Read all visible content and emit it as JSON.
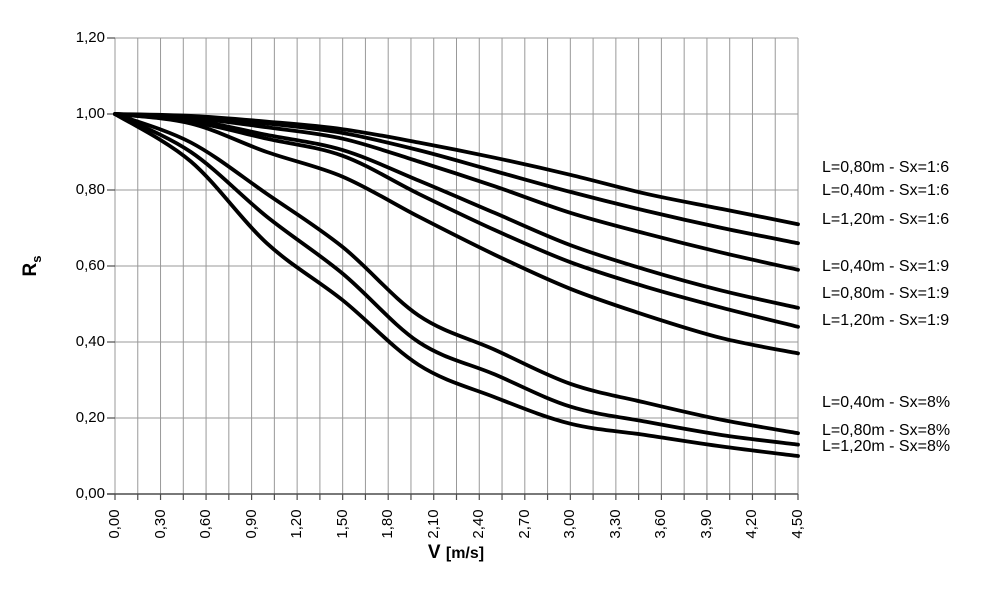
{
  "chart_data": {
    "type": "line",
    "title": "",
    "xlabel_main": "V",
    "xlabel_unit": "[m/s]",
    "ylabel_main": "R",
    "ylabel_sub": "s",
    "xlim": [
      0,
      4.5
    ],
    "ylim": [
      0,
      1.2
    ],
    "grid": true,
    "x_gridline_step": 0.15,
    "x_label_step": 0.3,
    "y_gridline_step": 0.2,
    "x_tick_labels": [
      "0,00",
      "0,30",
      "0,60",
      "0,90",
      "1,20",
      "1,50",
      "1,80",
      "2,10",
      "2,40",
      "2,70",
      "3,00",
      "3,30",
      "3,60",
      "3,90",
      "4,20",
      "4,50"
    ],
    "y_tick_labels": [
      "0,00",
      "0,20",
      "0,40",
      "0,60",
      "0,80",
      "1,00",
      "1,20"
    ],
    "x": [
      0,
      0.5,
      1.0,
      1.5,
      2.0,
      2.5,
      3.0,
      3.5,
      4.0,
      4.5
    ],
    "series": [
      {
        "name": "L=0,80m - Sx=1:6",
        "values": [
          1.0,
          0.995,
          0.98,
          0.96,
          0.925,
          0.885,
          0.84,
          0.79,
          0.75,
          0.71
        ]
      },
      {
        "name": "L=0,40m - Sx=1:6",
        "values": [
          1.0,
          0.99,
          0.975,
          0.95,
          0.905,
          0.85,
          0.795,
          0.745,
          0.7,
          0.66
        ]
      },
      {
        "name": "L=1,20m - Sx=1:6",
        "values": [
          1.0,
          0.99,
          0.965,
          0.935,
          0.875,
          0.81,
          0.74,
          0.685,
          0.635,
          0.59
        ]
      },
      {
        "name": "L=0,40m - Sx=1:9",
        "values": [
          1.0,
          0.985,
          0.945,
          0.905,
          0.825,
          0.74,
          0.655,
          0.59,
          0.535,
          0.49
        ]
      },
      {
        "name": "L=0,80m - Sx=1:9",
        "values": [
          1.0,
          0.98,
          0.935,
          0.89,
          0.79,
          0.695,
          0.61,
          0.545,
          0.49,
          0.44
        ]
      },
      {
        "name": "L=1,20m - Sx=1:9",
        "values": [
          1.0,
          0.975,
          0.9,
          0.835,
          0.73,
          0.63,
          0.54,
          0.47,
          0.41,
          0.37
        ]
      },
      {
        "name": "L=0,40m - Sx=8%",
        "values": [
          1.0,
          0.925,
          0.79,
          0.65,
          0.47,
          0.38,
          0.29,
          0.24,
          0.195,
          0.16
        ]
      },
      {
        "name": "L=0,80m - Sx=8%",
        "values": [
          1.0,
          0.9,
          0.73,
          0.58,
          0.4,
          0.315,
          0.23,
          0.19,
          0.155,
          0.13
        ]
      },
      {
        "name": "L=1,20m - Sx=8%",
        "values": [
          1.0,
          0.875,
          0.66,
          0.51,
          0.34,
          0.255,
          0.185,
          0.155,
          0.125,
          0.1
        ]
      }
    ],
    "legend_position": "right-of-plot",
    "line_color": "#000000",
    "grid_color": "#999999",
    "axis_color": "#4d4d4d",
    "background_color": "#ffffff"
  }
}
